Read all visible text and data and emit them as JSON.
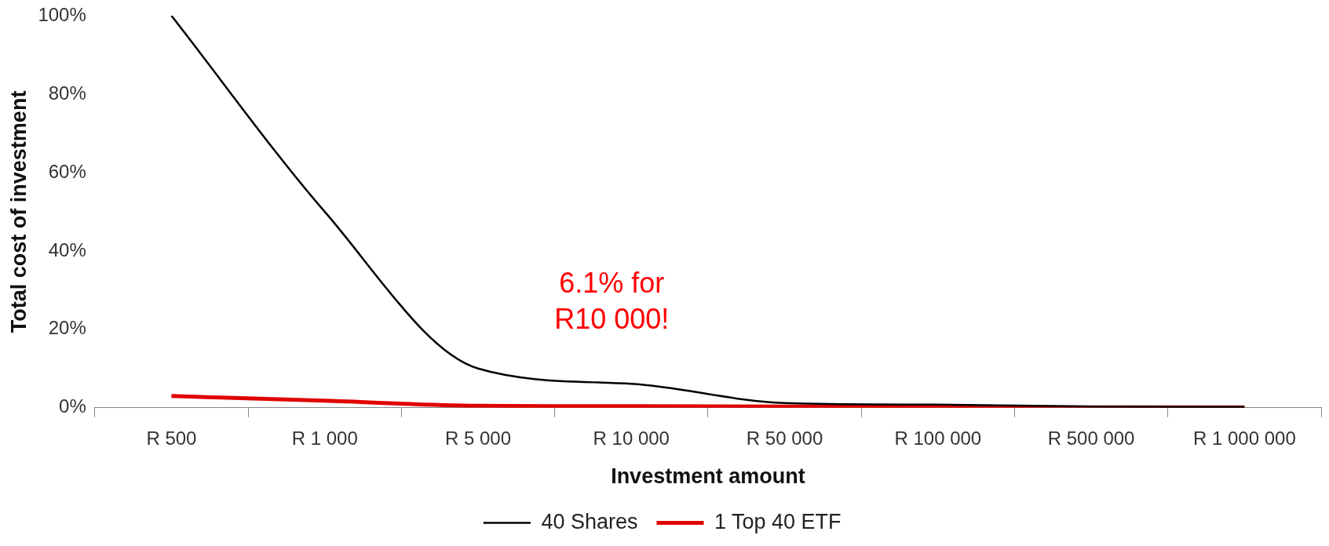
{
  "chart_data": {
    "type": "line",
    "xlabel": "Investment amount",
    "ylabel": "Total cost of investment",
    "categories": [
      "R 500",
      "R 1 000",
      "R 5 000",
      "R 10 000",
      "R 50 000",
      "R 100 000",
      "R 500 000",
      "R 1 000 000"
    ],
    "series": [
      {
        "name": "40 Shares",
        "color": "#000000",
        "values": [
          100,
          50,
          10,
          6.1,
          1.2,
          0.8,
          0.3,
          0.2
        ]
      },
      {
        "name": "1 Top 40 ETF",
        "color": "#e00000",
        "values": [
          3,
          1.8,
          0.5,
          0.4,
          0.3,
          0.2,
          0.1,
          0.1
        ]
      }
    ],
    "ylim": [
      0,
      100
    ],
    "yticks": [
      {
        "value": 0,
        "label": "0%"
      },
      {
        "value": 20,
        "label": "20%"
      },
      {
        "value": 40,
        "label": "40%"
      },
      {
        "value": 60,
        "label": "60%"
      },
      {
        "value": 80,
        "label": "80%"
      },
      {
        "value": 100,
        "label": "100%"
      }
    ],
    "annotations": [
      {
        "text": "6.1% for\nR10 000!",
        "x": "R 10 000",
        "y": 6.1
      }
    ],
    "grid": false,
    "legend": "bottom",
    "marker": "none",
    "line_style": "solid"
  }
}
